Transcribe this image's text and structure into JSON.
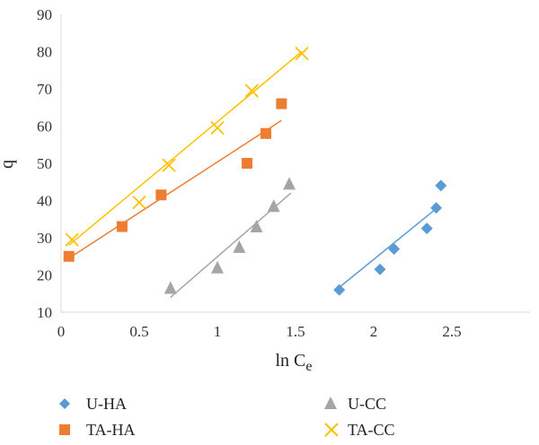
{
  "chart_data": {
    "type": "scatter",
    "xlabel_main": "ln C",
    "xlabel_sub": "e",
    "ylabel": "q",
    "xlim": [
      0,
      3
    ],
    "ylim": [
      10,
      90
    ],
    "x_ticks": [
      0,
      0.5,
      1,
      1.5,
      2,
      2.5
    ],
    "y_ticks": [
      10,
      20,
      30,
      40,
      50,
      60,
      70,
      80,
      90
    ],
    "x_tick_labels": [
      "0",
      "0.5",
      "1",
      "1.5",
      "2",
      "2.5"
    ],
    "y_tick_labels": [
      "10",
      "20",
      "30",
      "40",
      "50",
      "60",
      "70",
      "80",
      "90"
    ],
    "grid": false,
    "legend_placement": "bottom",
    "series": [
      {
        "name": "U-HA",
        "marker": "diamond",
        "color": "#5b9bd5",
        "points": [
          [
            1.78,
            16
          ],
          [
            2.04,
            21.5
          ],
          [
            2.13,
            27
          ],
          [
            2.34,
            32.5
          ],
          [
            2.4,
            38
          ],
          [
            2.43,
            44
          ]
        ],
        "trendline": [
          [
            1.76,
            16
          ],
          [
            2.42,
            38.5
          ]
        ]
      },
      {
        "name": "U-CC",
        "marker": "triangle",
        "color": "#a5a5a5",
        "points": [
          [
            0.7,
            16.5
          ],
          [
            1.0,
            22
          ],
          [
            1.14,
            27.5
          ],
          [
            1.25,
            33
          ],
          [
            1.36,
            38.5
          ],
          [
            1.46,
            44.5
          ]
        ],
        "trendline": [
          [
            0.7,
            14
          ],
          [
            1.47,
            42
          ]
        ]
      },
      {
        "name": "TA-HA",
        "marker": "square",
        "color": "#ed7d31",
        "points": [
          [
            0.05,
            25
          ],
          [
            0.39,
            33
          ],
          [
            0.64,
            41.5
          ],
          [
            1.19,
            50
          ],
          [
            1.31,
            58
          ],
          [
            1.41,
            66
          ]
        ],
        "trendline": [
          [
            0.05,
            24.5
          ],
          [
            1.41,
            61.5
          ]
        ]
      },
      {
        "name": "TA-CC",
        "marker": "x",
        "color": "#ffc000",
        "points": [
          [
            0.07,
            29.5
          ],
          [
            0.5,
            39.5
          ],
          [
            0.69,
            49.5
          ],
          [
            1.0,
            59.5
          ],
          [
            1.22,
            69.5
          ],
          [
            1.54,
            79.5
          ]
        ],
        "trendline": [
          [
            0.05,
            28
          ],
          [
            1.54,
            80
          ]
        ]
      }
    ]
  },
  "legend": {
    "u_ha": "U-HA",
    "u_cc": "U-CC",
    "ta_ha": "TA-HA",
    "ta_cc": "TA-CC"
  }
}
